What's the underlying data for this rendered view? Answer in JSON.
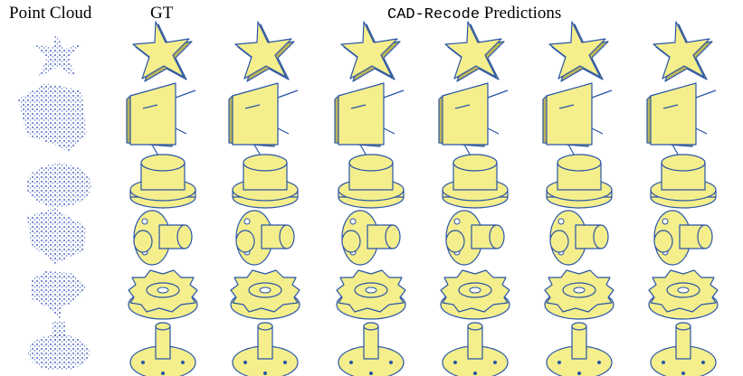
{
  "header": {
    "point_cloud": "Point Cloud",
    "gt": "GT",
    "method": "CAD-Recode",
    "predictions": "Predictions"
  }
}
